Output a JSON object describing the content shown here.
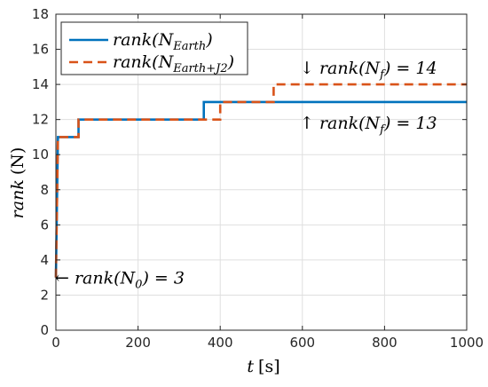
{
  "chart_data": {
    "type": "line",
    "xlabel": {
      "var": "t",
      "unit": "[s]"
    },
    "ylabel": {
      "var": "rank",
      "unit": "(N)"
    },
    "xlim": [
      0,
      1000
    ],
    "ylim": [
      0,
      18
    ],
    "xticks": [
      0,
      200,
      400,
      600,
      800,
      1000
    ],
    "yticks": [
      0,
      2,
      4,
      6,
      8,
      10,
      12,
      14,
      16,
      18
    ],
    "grid": true,
    "legend_position": "top-left",
    "series": [
      {
        "name": {
          "base": "rank(N",
          "sub": "Earth",
          "end": ")"
        },
        "color": "#0072BD",
        "style": "solid",
        "x": [
          0,
          5,
          5,
          55,
          55,
          360,
          360,
          1000
        ],
        "y": [
          3,
          11,
          11,
          11,
          12,
          12,
          13,
          13
        ]
      },
      {
        "name": {
          "base": "rank(N",
          "sub": "Earth+J2",
          "end": ")"
        },
        "color": "#D95319",
        "style": "dashed",
        "x": [
          0,
          5,
          5,
          55,
          55,
          400,
          400,
          530,
          530,
          1000
        ],
        "y": [
          3,
          11,
          11,
          11,
          12,
          12,
          13,
          13,
          14,
          14
        ]
      }
    ],
    "annotations": [
      {
        "id": "n0",
        "arrow": "←",
        "base": "rank(N",
        "sub": "0",
        "end": ") = 3",
        "x": 0,
        "y": 3
      },
      {
        "id": "nf14",
        "arrow": "↓",
        "base": "rank(N",
        "sub": "f",
        "end": ") = 14",
        "x": 530,
        "y": 14
      },
      {
        "id": "nf13",
        "arrow": "↑",
        "base": "rank(N",
        "sub": "f",
        "end": ") = 13",
        "x": 530,
        "y": 13
      }
    ]
  }
}
